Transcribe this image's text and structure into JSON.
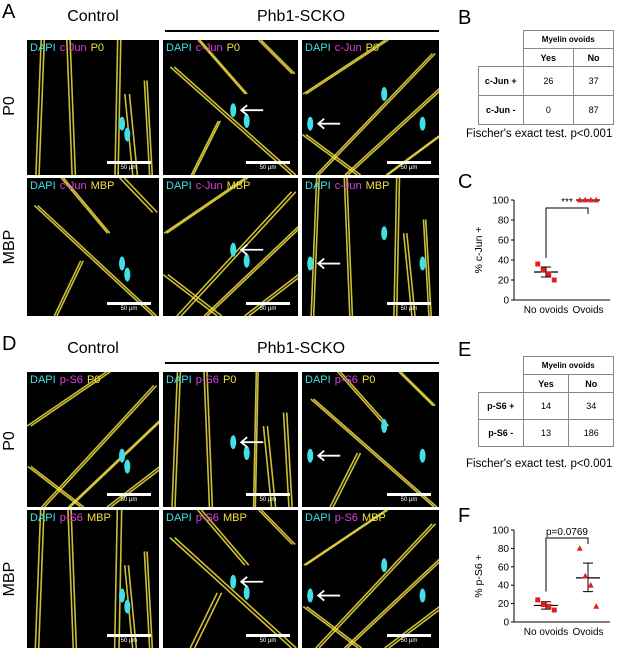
{
  "panels": {
    "A": "A",
    "B": "B",
    "C": "C",
    "D": "D",
    "E": "E",
    "F": "F"
  },
  "headers": {
    "control": "Control",
    "scko": "Phb1-SCKO"
  },
  "row_labels": {
    "p0": "P0",
    "mbp": "MBP"
  },
  "channels": {
    "dapi": "DAPI",
    "cjun": "c-Jun",
    "ps6": "p-S6",
    "p0": "P0",
    "mbp": "MBP"
  },
  "scale_bar": "50 µm",
  "colors": {
    "dapi": "#40e0e8",
    "magenta": "#e040e0",
    "yellow": "#f0e040",
    "red": "#e02020"
  },
  "table_B": {
    "header": "Myelin ovoids",
    "cols": [
      "Yes",
      "No"
    ],
    "rows": [
      {
        "label": "c-Jun +",
        "yes": "26",
        "no": "37"
      },
      {
        "label": "c-Jun -",
        "yes": "0",
        "no": "87"
      }
    ],
    "test": "Fischer's exact test. p<0.001"
  },
  "table_E": {
    "header": "Myelin ovoids",
    "cols": [
      "Yes",
      "No"
    ],
    "rows": [
      {
        "label": "p-S6 +",
        "yes": "14",
        "no": "34"
      },
      {
        "label": "p-S6 -",
        "yes": "13",
        "no": "186"
      }
    ],
    "test": "Fischer's exact test. p<0.001"
  },
  "chart_data": [
    {
      "type": "scatter",
      "panel": "C",
      "ylabel": "% c-Jun +",
      "categories": [
        "No ovoids",
        "Ovoids"
      ],
      "ylim": [
        0,
        100
      ],
      "yticks": [
        0,
        20,
        40,
        60,
        80,
        100
      ],
      "series": [
        {
          "category": "No ovoids",
          "marker": "square",
          "values": [
            36,
            30,
            26,
            20
          ],
          "mean": 28,
          "sem_low": 23,
          "sem_high": 33
        },
        {
          "category": "Ovoids",
          "marker": "triangle",
          "values": [
            100,
            100,
            100,
            100
          ],
          "mean": 100,
          "sem_low": 100,
          "sem_high": 100
        }
      ],
      "annotation": "***"
    },
    {
      "type": "scatter",
      "panel": "F",
      "ylabel": "% p-S6 +",
      "categories": [
        "No ovoids",
        "Ovoids"
      ],
      "ylim": [
        0,
        100
      ],
      "yticks": [
        0,
        20,
        40,
        60,
        80,
        100
      ],
      "series": [
        {
          "category": "No ovoids",
          "marker": "square",
          "values": [
            24,
            19,
            17,
            13
          ],
          "mean": 18,
          "sem_low": 14,
          "sem_high": 22
        },
        {
          "category": "Ovoids",
          "marker": "triangle",
          "values": [
            80,
            50,
            40,
            17
          ],
          "mean": 48,
          "sem_low": 33,
          "sem_high": 64
        }
      ],
      "annotation": "p=0.0769"
    }
  ]
}
